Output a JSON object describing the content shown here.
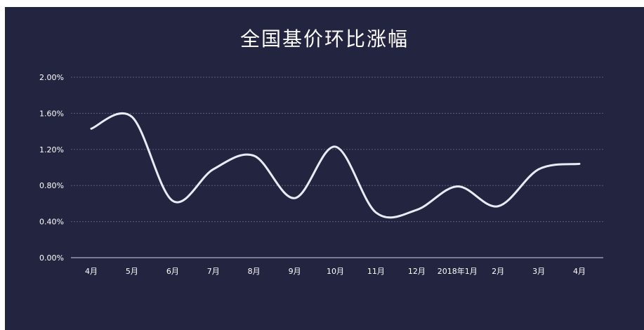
{
  "chart_data": {
    "type": "line",
    "title": "全国基价环比涨幅",
    "xlabel": "",
    "ylabel": "",
    "categories": [
      "4月",
      "5月",
      "6月",
      "7月",
      "8月",
      "9月",
      "10月",
      "11月",
      "12月",
      "2018年1月",
      "2月",
      "3月",
      "4月"
    ],
    "series": [
      {
        "values": [
          1.43,
          1.56,
          0.63,
          0.98,
          1.13,
          0.66,
          1.23,
          0.5,
          0.53,
          0.79,
          0.57,
          0.98,
          1.04
        ]
      }
    ],
    "ylim": [
      0,
      2.0
    ],
    "yticks": [
      "0.00%",
      "0.40%",
      "0.80%",
      "1.20%",
      "1.60%",
      "2.00%"
    ],
    "grid": true,
    "colors": {
      "background": "#232540",
      "line": "#e8ecf7",
      "grid": "#5a5d7a",
      "axis": "#cfd3e6",
      "text": "#ffffff"
    }
  }
}
